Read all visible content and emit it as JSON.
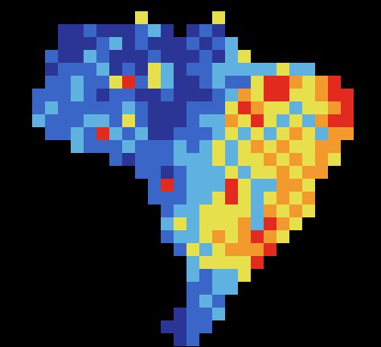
{
  "map": {
    "type": "heatmap",
    "colors": [
      "#2a3596",
      "#3a66c8",
      "#5fb2e0",
      "#e6e04c",
      "#f29a2e",
      "#e22a1e"
    ],
    "cells": [
      [
        null,
        null,
        null,
        null,
        null,
        null,
        null,
        null,
        3,
        null,
        null,
        null,
        null,
        null,
        3,
        null,
        null,
        null,
        null,
        null,
        null,
        null,
        null,
        null,
        null,
        null
      ],
      [
        null,
        null,
        0,
        0,
        1,
        0,
        0,
        0,
        1,
        2,
        0,
        null,
        0,
        1,
        0,
        null,
        null,
        null,
        null,
        null,
        null,
        null,
        null,
        null,
        null,
        null
      ],
      [
        null,
        null,
        0,
        0,
        0,
        1,
        2,
        0,
        1,
        0,
        0,
        0,
        1,
        0,
        1,
        2,
        null,
        null,
        null,
        null,
        null,
        null,
        null,
        null,
        null,
        null
      ],
      [
        null,
        1,
        0,
        0,
        2,
        1,
        0,
        0,
        0,
        1,
        0,
        0,
        0,
        1,
        0,
        2,
        3,
        null,
        null,
        null,
        null,
        null,
        null,
        null,
        null,
        null
      ],
      [
        null,
        0,
        1,
        1,
        1,
        2,
        0,
        1,
        0,
        3,
        2,
        0,
        1,
        1,
        2,
        2,
        2,
        2,
        2,
        3,
        2,
        2,
        null,
        null,
        null,
        null
      ],
      [
        null,
        1,
        1,
        2,
        1,
        1,
        3,
        5,
        1,
        3,
        2,
        0,
        0,
        1,
        2,
        1,
        1,
        3,
        5,
        5,
        4,
        3,
        4,
        5,
        null,
        null
      ],
      [
        1,
        1,
        1,
        2,
        1,
        0,
        1,
        1,
        0,
        0,
        1,
        0,
        0,
        0,
        1,
        2,
        4,
        3,
        5,
        5,
        3,
        3,
        4,
        5,
        5,
        null
      ],
      [
        1,
        2,
        1,
        1,
        1,
        1,
        1,
        2,
        1,
        0,
        0,
        0,
        1,
        1,
        1,
        3,
        5,
        4,
        3,
        3,
        2,
        3,
        3,
        4,
        5,
        null
      ],
      [
        2,
        1,
        1,
        1,
        2,
        2,
        1,
        3,
        1,
        0,
        0,
        0,
        1,
        2,
        2,
        4,
        3,
        5,
        3,
        2,
        3,
        2,
        4,
        5,
        5,
        null
      ],
      [
        null,
        1,
        1,
        2,
        1,
        5,
        2,
        1,
        2,
        0,
        0,
        1,
        1,
        1,
        2,
        3,
        2,
        3,
        2,
        3,
        4,
        3,
        2,
        4,
        4,
        null
      ],
      [
        null,
        null,
        null,
        2,
        1,
        1,
        1,
        2,
        1,
        1,
        1,
        2,
        1,
        2,
        3,
        2,
        3,
        4,
        3,
        4,
        3,
        3,
        4,
        4,
        null,
        null
      ],
      [
        null,
        null,
        null,
        null,
        null,
        null,
        1,
        0,
        1,
        1,
        1,
        2,
        2,
        2,
        3,
        2,
        3,
        3,
        4,
        3,
        4,
        3,
        4,
        3,
        null,
        null
      ],
      [
        null,
        null,
        null,
        null,
        null,
        null,
        null,
        null,
        1,
        1,
        0,
        1,
        2,
        2,
        2,
        3,
        2,
        3,
        3,
        4,
        3,
        4,
        4,
        null,
        null,
        null
      ],
      [
        null,
        null,
        null,
        null,
        null,
        null,
        null,
        null,
        null,
        1,
        5,
        1,
        2,
        2,
        2,
        5,
        3,
        2,
        2,
        4,
        4,
        3,
        null,
        null,
        null,
        null
      ],
      [
        null,
        null,
        null,
        null,
        null,
        null,
        null,
        null,
        null,
        1,
        1,
        1,
        2,
        2,
        3,
        5,
        3,
        2,
        3,
        4,
        3,
        4,
        null,
        null,
        null,
        null
      ],
      [
        null,
        null,
        null,
        null,
        null,
        null,
        null,
        null,
        null,
        null,
        1,
        2,
        2,
        3,
        3,
        3,
        3,
        2,
        4,
        3,
        4,
        3,
        null,
        null,
        null,
        null
      ],
      [
        null,
        null,
        null,
        null,
        null,
        null,
        null,
        null,
        null,
        null,
        2,
        3,
        2,
        3,
        3,
        3,
        4,
        2,
        5,
        4,
        3,
        null,
        null,
        null,
        null,
        null
      ],
      [
        null,
        null,
        null,
        null,
        null,
        null,
        null,
        null,
        null,
        null,
        1,
        2,
        2,
        3,
        4,
        3,
        4,
        5,
        4,
        3,
        null,
        null,
        null,
        null,
        null,
        null
      ],
      [
        null,
        null,
        null,
        null,
        null,
        null,
        null,
        null,
        null,
        null,
        null,
        1,
        3,
        2,
        3,
        4,
        4,
        4,
        5,
        null,
        null,
        null,
        null,
        null,
        null,
        null
      ],
      [
        null,
        null,
        null,
        null,
        null,
        null,
        null,
        null,
        null,
        null,
        null,
        null,
        2,
        3,
        3,
        3,
        3,
        5,
        null,
        null,
        null,
        null,
        null,
        null,
        null,
        null
      ],
      [
        null,
        null,
        null,
        null,
        null,
        null,
        null,
        null,
        null,
        null,
        null,
        null,
        2,
        1,
        2,
        2,
        3,
        null,
        null,
        null,
        null,
        null,
        null,
        null,
        null,
        null
      ],
      [
        null,
        null,
        null,
        null,
        null,
        null,
        null,
        null,
        null,
        null,
        null,
        null,
        1,
        1,
        2,
        2,
        null,
        null,
        null,
        null,
        null,
        null,
        null,
        null,
        null,
        null
      ],
      [
        null,
        null,
        null,
        null,
        null,
        null,
        null,
        null,
        null,
        null,
        null,
        null,
        1,
        2,
        1,
        null,
        null,
        null,
        null,
        null,
        null,
        null,
        null,
        null,
        null,
        null
      ],
      [
        null,
        null,
        null,
        null,
        null,
        null,
        null,
        null,
        null,
        null,
        null,
        0,
        1,
        1,
        2,
        null,
        null,
        null,
        null,
        null,
        null,
        null,
        null,
        null,
        null,
        null
      ],
      [
        null,
        null,
        null,
        null,
        null,
        null,
        null,
        null,
        null,
        null,
        0,
        0,
        1,
        1,
        null,
        null,
        null,
        null,
        null,
        null,
        null,
        null,
        null,
        null,
        null,
        null
      ],
      [
        null,
        null,
        null,
        null,
        null,
        null,
        null,
        null,
        null,
        null,
        null,
        0,
        1,
        null,
        null,
        null,
        null,
        null,
        null,
        null,
        null,
        null,
        null,
        null,
        null,
        null
      ]
    ]
  }
}
